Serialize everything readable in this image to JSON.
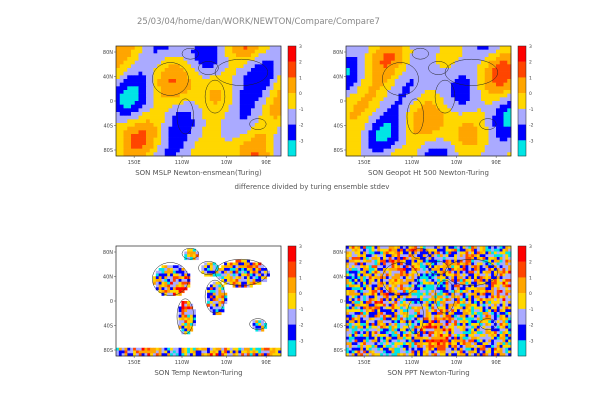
{
  "figure": {
    "path_title": "25/03/04/home/dan/WORK/NEWTON/Compare/Compare7",
    "note": "difference divided by turing ensemble stdev"
  },
  "chart_data": [
    {
      "type": "heatmap",
      "title": "SON MSLP Newton-ensmean(Turing)",
      "x_ticks": [
        "150E",
        "110W",
        "10W",
        "90E"
      ],
      "y_ticks": [
        "80N",
        "40N",
        "0",
        "40S",
        "80S"
      ],
      "colorbar_ticks": [
        "3",
        "2",
        "1",
        "0",
        "-1",
        "-2",
        "-3"
      ],
      "levels": [
        -3,
        -2,
        -1,
        0,
        1,
        2,
        3
      ],
      "colors": [
        "#00e5e5",
        "#0000ff",
        "#aaaaff",
        "#ffd700",
        "#ffa500",
        "#ff4500",
        "#ff0000"
      ],
      "masked": false,
      "style": "smooth"
    },
    {
      "type": "heatmap",
      "title": "SON Geopot Ht 500 Newton-Turing",
      "x_ticks": [
        "150E",
        "110W",
        "10W",
        "90E"
      ],
      "y_ticks": [
        "80N",
        "40N",
        "0",
        "40S",
        "80S"
      ],
      "colorbar_ticks": [
        "3",
        "2",
        "1",
        "0",
        "-1",
        "-2",
        "-3"
      ],
      "levels": [
        -3,
        -2,
        -1,
        0,
        1,
        2,
        3
      ],
      "colors": [
        "#00e5e5",
        "#0000ff",
        "#aaaaff",
        "#ffd700",
        "#ffa500",
        "#ff4500",
        "#ff0000"
      ],
      "masked": false,
      "style": "smooth"
    },
    {
      "type": "heatmap",
      "title": "SON Temp Newton-Turing",
      "x_ticks": [
        "150E",
        "110W",
        "10W",
        "90E"
      ],
      "y_ticks": [
        "80N",
        "40N",
        "0",
        "40S",
        "80S"
      ],
      "colorbar_ticks": [
        "3",
        "2",
        "1",
        "0",
        "-1",
        "-2",
        "-3"
      ],
      "levels": [
        -3,
        -2,
        -1,
        0,
        1,
        2,
        3
      ],
      "colors": [
        "#00e5e5",
        "#0000ff",
        "#aaaaff",
        "#ffd700",
        "#ffa500",
        "#ff4500",
        "#ff0000"
      ],
      "masked": true,
      "style": "noisy"
    },
    {
      "type": "heatmap",
      "title": "SON PPT Newton-Turing",
      "x_ticks": [
        "150E",
        "110W",
        "10W",
        "90E"
      ],
      "y_ticks": [
        "80N",
        "40N",
        "0",
        "40S",
        "80S"
      ],
      "colorbar_ticks": [
        "3",
        "2",
        "1",
        "0",
        "-1",
        "-2",
        "-3"
      ],
      "levels": [
        -3,
        -2,
        -1,
        0,
        1,
        2,
        3
      ],
      "colors": [
        "#00e5e5",
        "#0000ff",
        "#aaaaff",
        "#ffd700",
        "#ffa500",
        "#ff4500",
        "#ff0000"
      ],
      "masked": false,
      "style": "noisy"
    }
  ]
}
